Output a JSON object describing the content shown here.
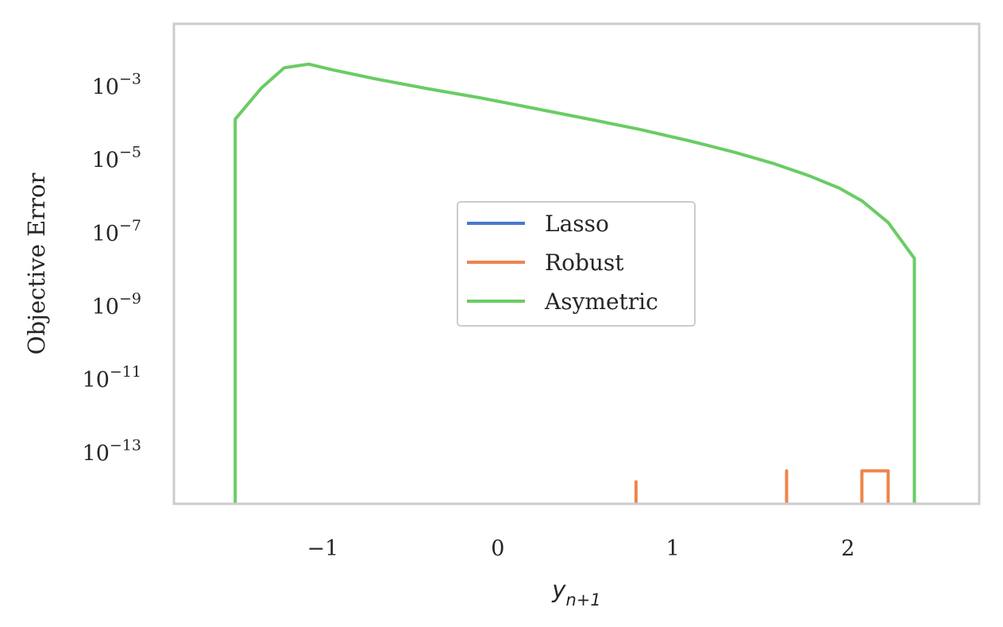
{
  "chart_data": {
    "type": "line",
    "xlabel": "y_{n+1}",
    "xlabel_base": "y",
    "xlabel_sub": "n+1",
    "ylabel": "Objective Error",
    "xlim": [
      -1.85,
      2.75
    ],
    "ylim_log10": [
      -14.4,
      -1.3
    ],
    "y_scale": "log",
    "grid": false,
    "legend_position": "center",
    "xticks": [
      {
        "value": -1,
        "label": "−1"
      },
      {
        "value": 0,
        "label": "0"
      },
      {
        "value": 1,
        "label": "1"
      },
      {
        "value": 2,
        "label": "2"
      }
    ],
    "yticks": [
      {
        "exp": -3,
        "base": "10",
        "sup": "−3"
      },
      {
        "exp": -5,
        "base": "10",
        "sup": "−5"
      },
      {
        "exp": -7,
        "base": "10",
        "sup": "−7"
      },
      {
        "exp": -9,
        "base": "10",
        "sup": "−9"
      },
      {
        "exp": -11,
        "base": "10",
        "sup": "−11"
      },
      {
        "exp": -13,
        "base": "10",
        "sup": "−13"
      }
    ],
    "series": [
      {
        "name": "Lasso",
        "color": "#4878d0",
        "points": []
      },
      {
        "name": "Robust",
        "color": "#ee854a",
        "points": [
          [
            0.79,
            -14.5
          ],
          [
            0.79,
            -13.8
          ],
          [
            0.79,
            -14.5
          ],
          [
            1.65,
            -14.5
          ],
          [
            1.65,
            -13.5
          ],
          [
            1.65,
            -14.5
          ],
          [
            2.08,
            -14.5
          ],
          [
            2.08,
            -13.5
          ],
          [
            2.23,
            -13.5
          ],
          [
            2.23,
            -14.5
          ]
        ]
      },
      {
        "name": "Asymetric",
        "color": "#6acc64",
        "points": [
          [
            -1.5,
            -14.5
          ],
          [
            -1.5,
            -3.9
          ],
          [
            -1.35,
            -3.05
          ],
          [
            -1.22,
            -2.5
          ],
          [
            -1.08,
            -2.4
          ],
          [
            -0.95,
            -2.55
          ],
          [
            -0.7,
            -2.8
          ],
          [
            -0.4,
            -3.07
          ],
          [
            -0.1,
            -3.32
          ],
          [
            0.2,
            -3.6
          ],
          [
            0.5,
            -3.88
          ],
          [
            0.8,
            -4.17
          ],
          [
            1.1,
            -4.5
          ],
          [
            1.35,
            -4.8
          ],
          [
            1.58,
            -5.12
          ],
          [
            1.78,
            -5.45
          ],
          [
            1.95,
            -5.78
          ],
          [
            2.08,
            -6.13
          ],
          [
            2.23,
            -6.72
          ],
          [
            2.38,
            -7.7
          ],
          [
            2.38,
            -14.5
          ]
        ]
      }
    ]
  }
}
